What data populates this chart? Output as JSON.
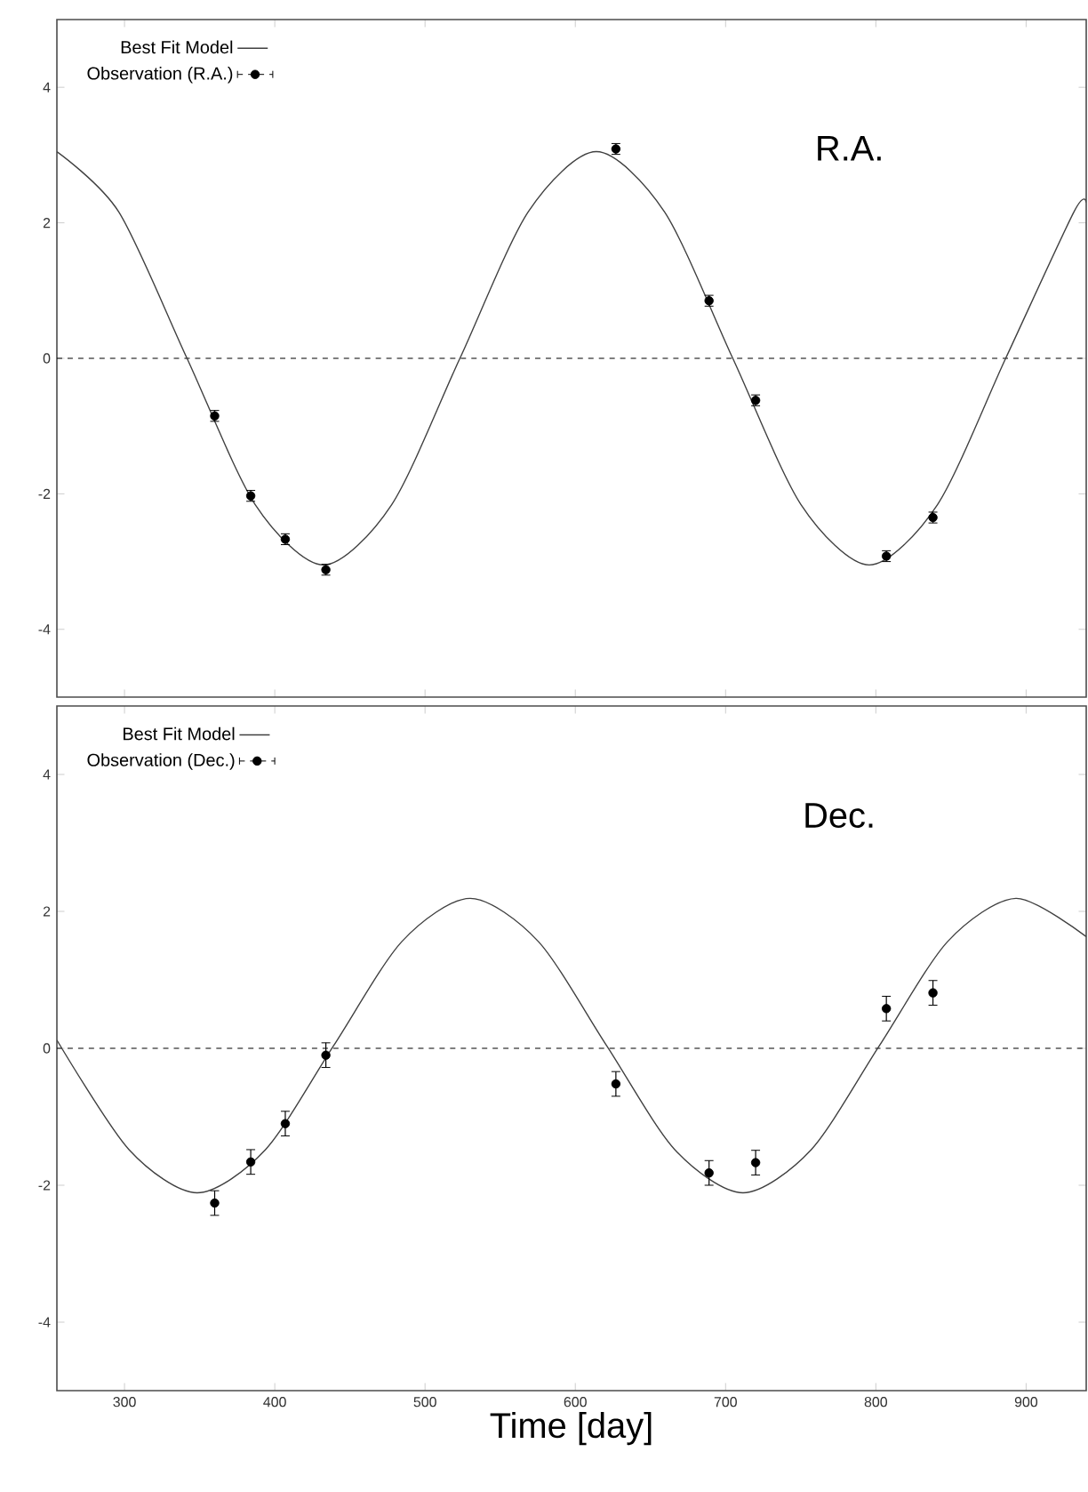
{
  "chart_data": [
    {
      "type": "line",
      "xlim": [
        255,
        940
      ],
      "ylim": [
        -5,
        5
      ],
      "xticks": [
        300,
        400,
        500,
        600,
        700,
        800,
        900
      ],
      "yticks": [
        -4,
        -2,
        0,
        2,
        4
      ],
      "tick_labels": "y",
      "legend": "top left",
      "annotations": [
        "R.A."
      ],
      "ref_lines": [
        {
          "axis": "y",
          "value": 0,
          "line_style": "dashed",
          "color": "#000000"
        }
      ],
      "series": [
        {
          "name": "Best Fit Model",
          "type": "line",
          "color": "#404040",
          "line_style": "solid",
          "x": [
            255,
            296.2,
            341.6,
            387,
            432.4,
            477.8,
            523.2,
            568.6,
            614,
            659.4,
            704.8,
            750.2,
            795.6,
            841,
            886.4,
            931.8,
            940
          ],
          "values": [
            3.05,
            2.16,
            0,
            -2.16,
            -3.05,
            -2.16,
            0,
            2.16,
            3.05,
            2.16,
            0,
            -2.16,
            -3.05,
            -2.16,
            0,
            2.16,
            2.3
          ]
        },
        {
          "name": "Observation (R.A.)",
          "type": "scatter",
          "marker": "circle",
          "color": "#000000",
          "x": [
            360,
            384,
            407,
            434,
            627,
            689,
            720,
            807,
            838
          ],
          "values": [
            -0.85,
            -2.03,
            -2.67,
            -3.12,
            3.09,
            0.85,
            -0.62,
            -2.92,
            -2.35
          ],
          "errors": [
            0.08,
            0.08,
            0.08,
            0.08,
            0.08,
            0.08,
            0.08,
            0.08,
            0.08
          ]
        }
      ]
    },
    {
      "type": "line",
      "xlim": [
        255,
        940
      ],
      "ylim": [
        -5,
        5
      ],
      "xticks": [
        300,
        400,
        500,
        600,
        700,
        800,
        900
      ],
      "yticks": [
        -4,
        -2,
        0,
        2,
        4
      ],
      "xlabel": "Time [day]",
      "legend": "top left",
      "annotations": [
        "Dec."
      ],
      "ref_lines": [
        {
          "axis": "y",
          "value": 0,
          "line_style": "dashed",
          "color": "#000000"
        }
      ],
      "series": [
        {
          "name": "Best Fit Model",
          "type": "line",
          "color": "#404040",
          "line_style": "solid",
          "x": [
            255,
            303,
            348.4,
            393.8,
            439.2,
            484.6,
            530,
            575.4,
            620.8,
            666.2,
            711.6,
            757,
            802.4,
            847.8,
            893.2,
            940
          ],
          "values": [
            0.12,
            -1.48,
            -2.11,
            -1.48,
            0.04,
            1.56,
            2.19,
            1.56,
            0.04,
            -1.48,
            -2.11,
            -1.48,
            0.04,
            1.56,
            2.19,
            1.63
          ]
        },
        {
          "name": "Observation (Dec.)",
          "type": "scatter",
          "marker": "circle",
          "color": "#000000",
          "x": [
            360,
            384,
            407,
            434,
            627,
            689,
            720,
            807,
            838
          ],
          "values": [
            -2.26,
            -1.66,
            -1.1,
            -0.1,
            -0.52,
            -1.82,
            -1.67,
            0.58,
            0.81
          ],
          "errors": [
            0.18,
            0.18,
            0.18,
            0.18,
            0.18,
            0.18,
            0.18,
            0.18,
            0.18
          ]
        }
      ]
    }
  ]
}
